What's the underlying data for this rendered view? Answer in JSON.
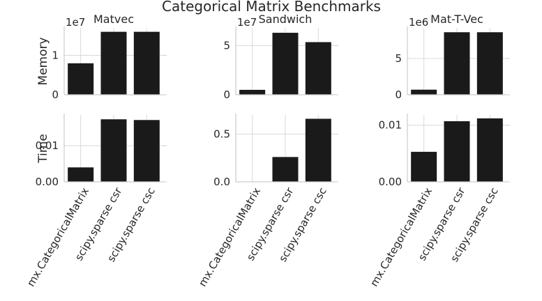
{
  "chart_data": {
    "title": "Categorical Matrix Benchmarks",
    "type": "bar",
    "categories": [
      "mx.CategoricalMatrix",
      "scipy.sparse csr",
      "scipy.sparse csc"
    ],
    "row_labels": [
      "Memory",
      "Time"
    ],
    "bar_color": "#1a1a1a",
    "grid": true,
    "panels": [
      {
        "row": 0,
        "col": 0,
        "title": "Matvec",
        "ylabel": "Memory",
        "offset_text": "1e7",
        "values": [
          0.8,
          1.6,
          1.6
        ],
        "yticks": [
          0,
          1
        ],
        "ytick_labels": [
          "0",
          "1"
        ],
        "ylim": [
          0,
          1.7
        ]
      },
      {
        "row": 0,
        "col": 1,
        "title": "Sandwich",
        "ylabel": "",
        "offset_text": "1e7",
        "values": [
          0.5,
          6.3,
          5.35
        ],
        "yticks": [
          0,
          5
        ],
        "ytick_labels": [
          "0",
          "5"
        ],
        "ylim": [
          0,
          6.8
        ]
      },
      {
        "row": 0,
        "col": 2,
        "title": "Mat-T-Vec",
        "ylabel": "",
        "offset_text": "1e6",
        "values": [
          0.7,
          8.6,
          8.6
        ],
        "yticks": [
          0,
          5
        ],
        "ytick_labels": [
          "0",
          "5"
        ],
        "ylim": [
          0,
          9.2
        ]
      },
      {
        "row": 1,
        "col": 0,
        "title": "",
        "ylabel": "Time",
        "offset_text": "",
        "values": [
          0.004,
          0.0173,
          0.0171
        ],
        "yticks": [
          0,
          0.01
        ],
        "ytick_labels": [
          "0.00",
          "0.01"
        ],
        "ylim": [
          0,
          0.0185
        ]
      },
      {
        "row": 1,
        "col": 1,
        "title": "",
        "ylabel": "",
        "offset_text": "",
        "values": [
          0.0,
          0.26,
          0.66
        ],
        "yticks": [
          0,
          0.5
        ],
        "ytick_labels": [
          "0.0",
          "0.5"
        ],
        "ylim": [
          0,
          0.7
        ]
      },
      {
        "row": 1,
        "col": 2,
        "title": "",
        "ylabel": "",
        "offset_text": "",
        "values": [
          0.0053,
          0.0107,
          0.0112
        ],
        "yticks": [
          0,
          0.01
        ],
        "ytick_labels": [
          "0.00",
          "0.01"
        ],
        "ylim": [
          0,
          0.0118
        ]
      }
    ]
  }
}
